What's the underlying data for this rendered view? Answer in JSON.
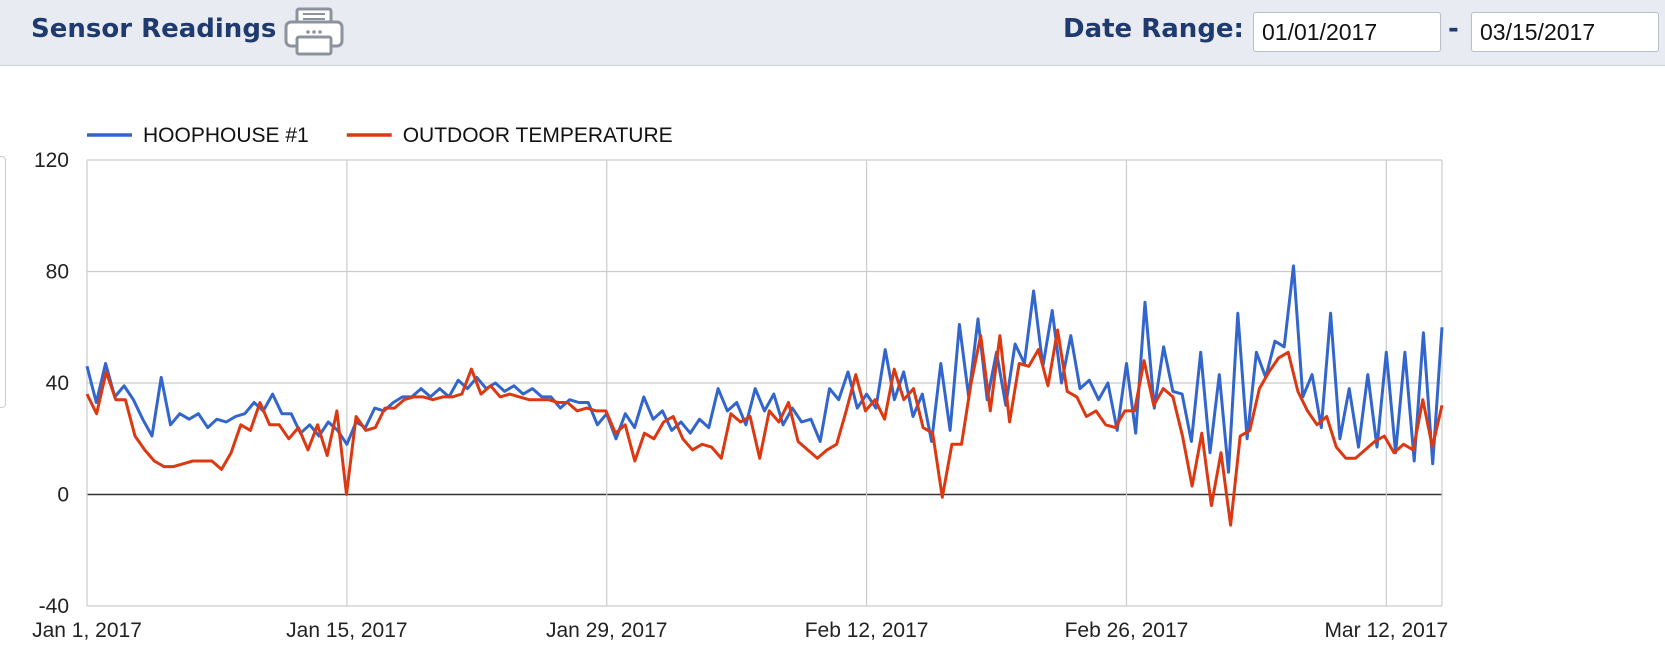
{
  "header": {
    "title": "Sensor Readings",
    "print_icon": "printer-icon",
    "date_range_label": "Date Range:",
    "date_from": "01/01/2017",
    "date_separator": "-",
    "date_to": "03/15/2017"
  },
  "chart_data": {
    "type": "line",
    "title": "",
    "xlabel": "",
    "ylabel": "",
    "ylim": [
      -40,
      120
    ],
    "yticks": [
      -40,
      0,
      40,
      80,
      120
    ],
    "x_range": [
      "2017-01-01",
      "2017-03-15"
    ],
    "xticks": [
      {
        "date": "2017-01-01",
        "label": "Jan 1, 2017"
      },
      {
        "date": "2017-01-15",
        "label": "Jan 15, 2017"
      },
      {
        "date": "2017-01-29",
        "label": "Jan 29, 2017"
      },
      {
        "date": "2017-02-12",
        "label": "Feb 12, 2017"
      },
      {
        "date": "2017-02-26",
        "label": "Feb 26, 2017"
      },
      {
        "date": "2017-03-12",
        "label": "Mar 12, 2017"
      }
    ],
    "grid": true,
    "legend_position": "top-left",
    "series": [
      {
        "name": "HOOPHOUSE #1",
        "color": "#3366cc",
        "values": [
          46,
          33,
          47,
          35,
          39,
          34,
          27,
          21,
          42,
          25,
          29,
          27,
          29,
          24,
          27,
          26,
          28,
          29,
          33,
          30,
          36,
          29,
          29,
          22,
          25,
          21,
          26,
          23,
          18,
          26,
          24,
          31,
          30,
          33,
          35,
          35,
          38,
          35,
          38,
          35,
          41,
          38,
          42,
          38,
          40,
          37,
          39,
          36,
          38,
          35,
          35,
          31,
          34,
          33,
          33,
          25,
          29,
          20,
          29,
          24,
          35,
          27,
          30,
          23,
          26,
          22,
          27,
          24,
          38,
          30,
          33,
          25,
          38,
          30,
          36,
          25,
          31,
          26,
          27,
          19,
          38,
          34,
          44,
          31,
          36,
          31,
          52,
          34,
          44,
          28,
          36,
          19,
          47,
          23,
          61,
          35,
          63,
          34,
          51,
          32,
          54,
          47,
          73,
          46,
          66,
          40,
          57,
          38,
          41,
          34,
          40,
          23,
          47,
          22,
          69,
          31,
          53,
          37,
          36,
          19,
          51,
          15,
          43,
          8,
          65,
          20,
          51,
          42,
          55,
          53,
          82,
          35,
          43,
          24,
          65,
          20,
          38,
          17,
          43,
          17,
          51,
          15,
          51,
          12,
          58,
          11,
          60
        ]
      },
      {
        "name": "OUTDOOR TEMPERATURE",
        "color": "#dc3912",
        "values": [
          36,
          29,
          44,
          34,
          34,
          21,
          16,
          12,
          10,
          10,
          11,
          12,
          12,
          12,
          9,
          15,
          25,
          23,
          33,
          25,
          25,
          20,
          24,
          16,
          25,
          14,
          30,
          0,
          28,
          23,
          24,
          31,
          31,
          34,
          35,
          35,
          34,
          35,
          35,
          36,
          45,
          36,
          39,
          35,
          36,
          35,
          34,
          34,
          34,
          33,
          33,
          30,
          31,
          30,
          30,
          22,
          25,
          12,
          22,
          20,
          26,
          28,
          20,
          16,
          18,
          17,
          13,
          29,
          26,
          28,
          13,
          30,
          26,
          33,
          19,
          16,
          13,
          16,
          18,
          30,
          43,
          30,
          34,
          27,
          45,
          34,
          38,
          24,
          22,
          -1,
          18,
          18,
          40,
          57,
          30,
          57,
          26,
          47,
          46,
          52,
          39,
          59,
          37,
          35,
          28,
          30,
          25,
          24,
          30,
          30,
          48,
          32,
          38,
          35,
          21,
          3,
          22,
          -4,
          15,
          -11,
          21,
          23,
          38,
          44,
          49,
          51,
          37,
          30,
          25,
          28,
          17,
          13,
          13,
          16,
          19,
          21,
          15,
          18,
          16,
          34,
          17,
          32
        ]
      }
    ]
  }
}
